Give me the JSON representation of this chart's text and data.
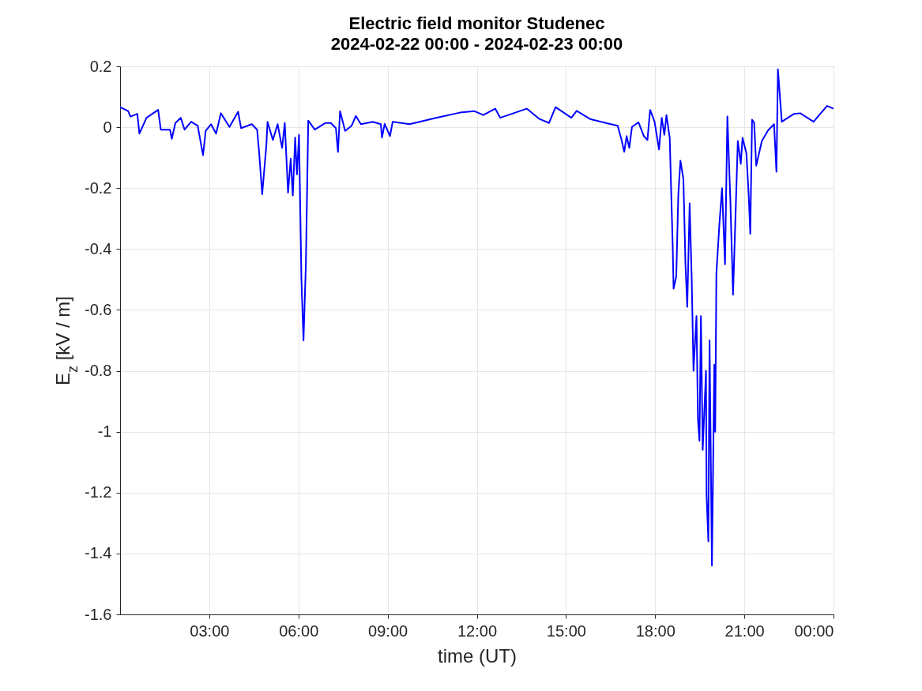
{
  "chart_data": {
    "type": "line",
    "title": "Electric field monitor Studenec",
    "subtitle": "2024-02-22 00:00 - 2024-02-23 00:00",
    "xlabel": "time (UT)",
    "ylabel": "E$_{z}$ [kV / m]",
    "xlim": [
      0,
      24
    ],
    "xticks": [
      {
        "value": 3,
        "label": "03:00"
      },
      {
        "value": 6,
        "label": "06:00"
      },
      {
        "value": 9,
        "label": "09:00"
      },
      {
        "value": 12,
        "label": "12:00"
      },
      {
        "value": 15,
        "label": "15:00"
      },
      {
        "value": 18,
        "label": "18:00"
      },
      {
        "value": 21,
        "label": "21:00"
      },
      {
        "value": 24,
        "label": "00:00"
      }
    ],
    "ylim": [
      -1.6,
      0.2
    ],
    "yticks": [
      -1.6,
      -1.4,
      -1.2,
      -1,
      -0.8,
      -0.6,
      -0.4,
      -0.2,
      0,
      0.2
    ],
    "grid": true,
    "marker": "none",
    "line_style": "solid",
    "series": [
      {
        "color": "#0000ff",
        "x": [
          0,
          0.27,
          0.35,
          0.58,
          0.65,
          0.89,
          1.28,
          1.37,
          1.68,
          1.74,
          1.86,
          2.04,
          2.17,
          2.39,
          2.61,
          2.79,
          2.88,
          3.06,
          3.23,
          3.39,
          3.68,
          3.97,
          4.07,
          4.43,
          4.61,
          4.68,
          4.78,
          4.92,
          4.96,
          5.14,
          5.3,
          5.45,
          5.54,
          5.65,
          5.74,
          5.81,
          5.89,
          5.95,
          6.02,
          6.1,
          6.17,
          6.25,
          6.33,
          6.55,
          6.91,
          7.09,
          7.26,
          7.33,
          7.4,
          7.57,
          7.79,
          7.93,
          8.1,
          8.5,
          8.77,
          8.81,
          8.9,
          9.08,
          9.17,
          9.74,
          10.63,
          11.43,
          11.91,
          12.22,
          12.62,
          12.79,
          13.68,
          14.11,
          14.43,
          14.65,
          15.18,
          15.36,
          15.81,
          16.34,
          16.74,
          16.87,
          16.96,
          17.04,
          17.13,
          17.22,
          17.44,
          17.62,
          17.74,
          17.83,
          17.98,
          18.13,
          18.22,
          18.31,
          18.38,
          18.49,
          18.59,
          18.62,
          18.71,
          18.78,
          18.85,
          18.95,
          19.02,
          19.08,
          19.16,
          19.23,
          19.29,
          19.39,
          19.44,
          19.49,
          19.54,
          19.6,
          19.71,
          19.73,
          19.79,
          19.83,
          19.91,
          19.99,
          20.02,
          20.06,
          20.16,
          20.25,
          20.35,
          20.43,
          20.53,
          20.62,
          20.71,
          20.78,
          20.88,
          20.94,
          21.07,
          21.15,
          21.2,
          21.26,
          21.33,
          21.4,
          21.59,
          21.8,
          22.0,
          22.08,
          22.13,
          22.26,
          22.67,
          22.88,
          23.33,
          23.78,
          24
        ],
        "values": [
          0.066,
          0.053,
          0.035,
          0.044,
          -0.021,
          0.031,
          0.057,
          -0.008,
          -0.008,
          -0.038,
          0.014,
          0.031,
          -0.008,
          0.018,
          0.005,
          -0.092,
          -0.012,
          0.01,
          -0.021,
          0.046,
          0.001,
          0.051,
          -0.003,
          0.01,
          -0.008,
          -0.086,
          -0.22,
          -0.06,
          0.018,
          -0.042,
          0.01,
          -0.068,
          0.014,
          -0.215,
          -0.103,
          -0.224,
          -0.034,
          -0.155,
          -0.025,
          -0.5,
          -0.7,
          -0.45,
          0.022,
          -0.008,
          0.014,
          0.014,
          -0.003,
          -0.081,
          0.053,
          -0.012,
          0.005,
          0.037,
          0.01,
          0.018,
          0.01,
          -0.034,
          0.011,
          -0.029,
          0.018,
          0.01,
          0.031,
          0.048,
          0.053,
          0.04,
          0.061,
          0.031,
          0.061,
          0.027,
          0.014,
          0.066,
          0.031,
          0.054,
          0.027,
          0.014,
          0.005,
          -0.042,
          -0.081,
          -0.029,
          -0.068,
          0.001,
          0.016,
          -0.029,
          -0.042,
          0.057,
          0.018,
          -0.073,
          0.031,
          -0.025,
          0.04,
          -0.035,
          -0.39,
          -0.53,
          -0.49,
          -0.22,
          -0.11,
          -0.17,
          -0.45,
          -0.59,
          -0.25,
          -0.5,
          -0.8,
          -0.62,
          -0.96,
          -1.03,
          -0.62,
          -1.06,
          -0.8,
          -1.21,
          -1.36,
          -0.7,
          -1.44,
          -0.78,
          -1.0,
          -0.48,
          -0.32,
          -0.2,
          -0.45,
          0.035,
          -0.24,
          -0.55,
          -0.27,
          -0.045,
          -0.12,
          -0.035,
          -0.086,
          -0.23,
          -0.35,
          0.025,
          0.015,
          -0.126,
          -0.045,
          -0.01,
          0.01,
          -0.146,
          0.19,
          0.018,
          0.044,
          0.046,
          0.018,
          0.07,
          0.061
        ]
      }
    ]
  }
}
